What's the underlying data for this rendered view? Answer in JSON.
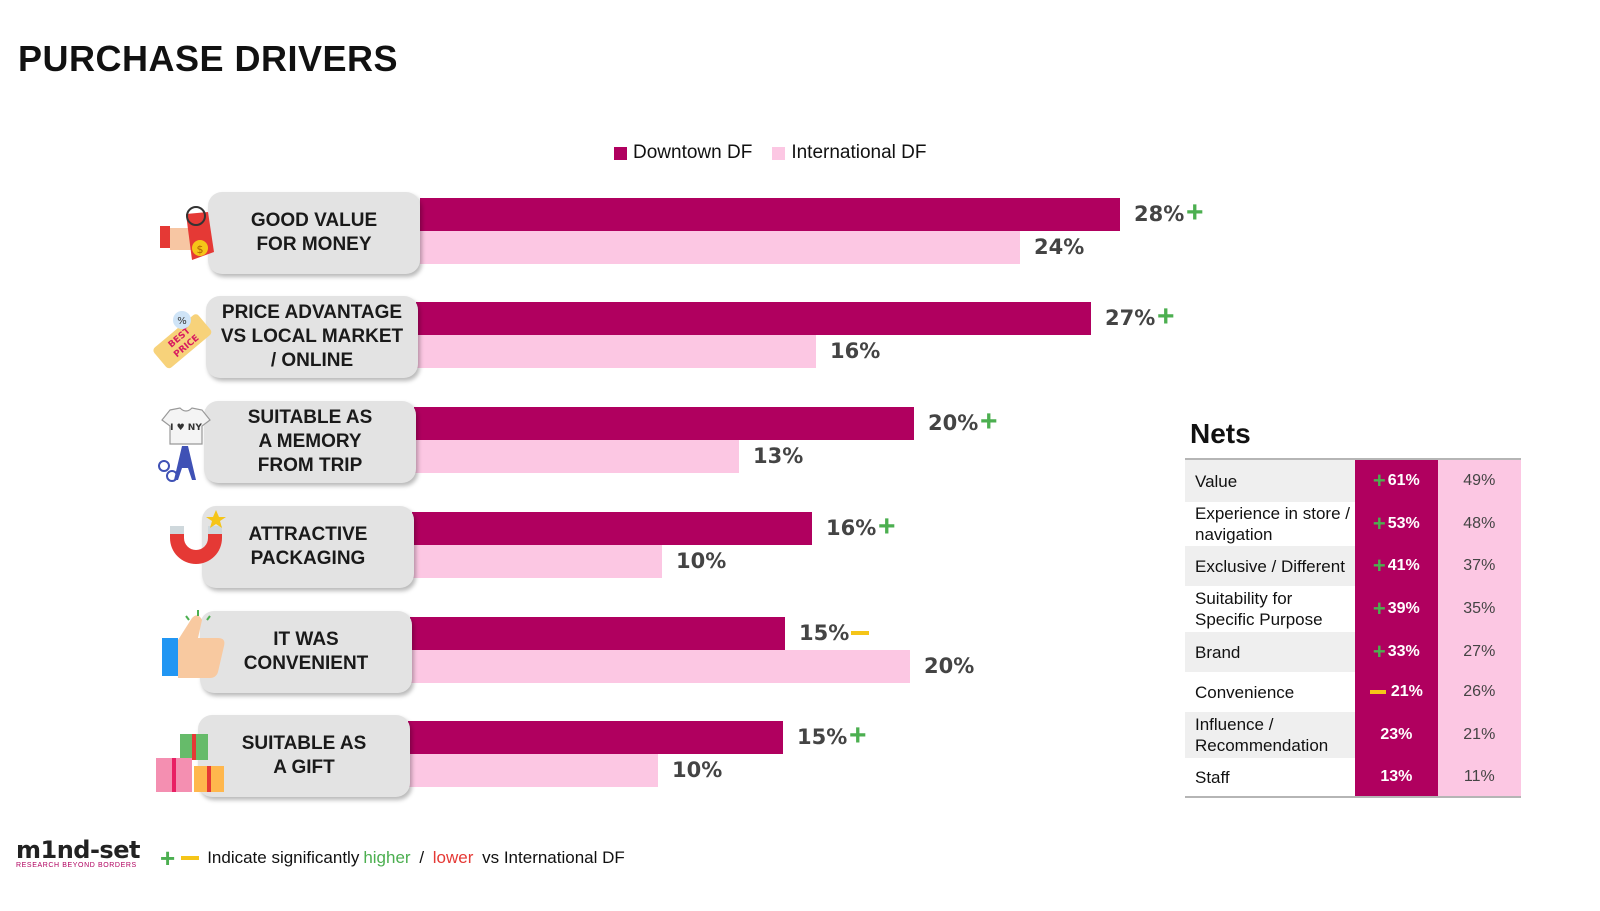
{
  "title": "PURCHASE DRIVERS",
  "colors": {
    "downtown": "#b0005f",
    "international": "#fcc7e3",
    "plus": "#4caf50",
    "minus": "#f5c518",
    "lower": "#e53935"
  },
  "chart_data": {
    "type": "bar",
    "orientation": "horizontal",
    "categories": [
      "GOOD VALUE\nFOR MONEY",
      "PRICE ADVANTAGE\nVS LOCAL MARKET\n/ ONLINE",
      "SUITABLE AS\nA MEMORY\nFROM TRIP",
      "ATTRACTIVE\nPACKAGING",
      "IT WAS\nCONVENIENT",
      "SUITABLE AS\nA GIFT"
    ],
    "series": [
      {
        "name": "Downtown DF",
        "values": [
          28,
          27,
          20,
          16,
          15,
          15
        ],
        "labels": [
          "28%",
          "27%",
          "20%",
          "16%",
          "15%",
          "15%"
        ]
      },
      {
        "name": "International DF",
        "values": [
          24,
          16,
          13,
          10,
          20,
          10
        ],
        "labels": [
          "24%",
          "16%",
          "13%",
          "10%",
          "20%",
          "10%"
        ]
      }
    ],
    "significance": [
      "+",
      "+",
      "+",
      "+",
      "-",
      "+"
    ],
    "legend_position": "top",
    "grid": false
  },
  "nets": {
    "title": "Nets",
    "rows": [
      {
        "label": "Value",
        "downtown": "61%",
        "international": "49%",
        "sig": "+"
      },
      {
        "label": "Experience in store /\nnavigation",
        "downtown": "53%",
        "international": "48%",
        "sig": "+"
      },
      {
        "label": "Exclusive / Different",
        "downtown": "41%",
        "international": "37%",
        "sig": "+"
      },
      {
        "label": "Suitability for\nSpecific Purpose",
        "downtown": "39%",
        "international": "35%",
        "sig": "+"
      },
      {
        "label": "Brand",
        "downtown": "33%",
        "international": "27%",
        "sig": "+"
      },
      {
        "label": "Convenience",
        "downtown": "21%",
        "international": "26%",
        "sig": "-"
      },
      {
        "label": "Influence /\nRecommendation",
        "downtown": "23%",
        "international": "21%",
        "sig": ""
      },
      {
        "label": "Staff",
        "downtown": "13%",
        "international": "11%",
        "sig": ""
      }
    ]
  },
  "footnote": {
    "prefix": "Indicate significantly ",
    "higher": "higher",
    "slash": " / ",
    "lower": "lower",
    "suffix": " vs International DF"
  },
  "logo": {
    "text": "m1nd-set",
    "tagline": "RESEARCH BEYOND BORDERS"
  },
  "icons": [
    "price-tag-hand-icon",
    "best-price-tag-icon",
    "souvenir-tshirt-eiffel-icon",
    "magnet-icon",
    "thumbs-up-icon",
    "gift-boxes-icon"
  ]
}
